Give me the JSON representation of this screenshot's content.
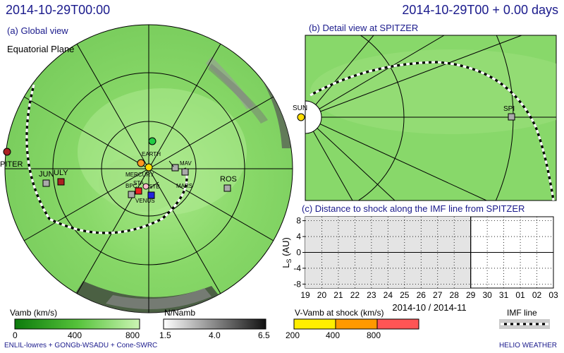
{
  "header": {
    "title": "2014-10-29T00:00",
    "right_title": "2014-10-29T00 + 0.00 days"
  },
  "global_view": {
    "label": "(a) Global view",
    "plane": "Equatorial Plane",
    "bodies": [
      {
        "name": "EARTH",
        "color": "#22cc44"
      },
      {
        "name": "MERCURY",
        "color": "#ff9922"
      },
      {
        "name": "SUN",
        "color": "#ffdd00"
      },
      {
        "name": "STA",
        "color": "#ee2222"
      },
      {
        "name": "STB",
        "color": "#2222dd"
      },
      {
        "name": "VENUS",
        "color": "#ffbbcc"
      },
      {
        "name": "MAV",
        "color": "#aaaaaa"
      },
      {
        "name": "MARS",
        "color": "#ffffff"
      },
      {
        "name": "ROS",
        "color": "#aaaaaa"
      },
      {
        "name": "JUN",
        "color": "#aaaaaa"
      },
      {
        "name": "ULY",
        "color": "#aa2222"
      },
      {
        "name": "PITER",
        "color": "#aa2222"
      },
      {
        "name": "SPI",
        "color": "#aaaaaa"
      },
      {
        "name": "BPC",
        "color": "#aaaaaa"
      }
    ]
  },
  "detail_view": {
    "label": "(b) Detail view at SPITZER",
    "sun_label": "SUN",
    "spi_label": "SPI"
  },
  "chart_data": {
    "type": "line",
    "title": "(c) Distance to shock along the IMF line from SPITZER",
    "ylabel_main": "L",
    "ylabel_sub": "S",
    "ylabel_unit": " (AU)",
    "xlabel": "2014-10 / 2014-11",
    "yticks": [
      "8",
      "4",
      "0",
      "-4",
      "-8"
    ],
    "ylim": [
      -9,
      9
    ],
    "xticks": [
      "19",
      "20",
      "21",
      "22",
      "23",
      "24",
      "25",
      "26",
      "27",
      "28",
      "29",
      "30",
      "31",
      "01",
      "02",
      "03"
    ],
    "shaded_until_index": 10,
    "series": []
  },
  "legends": {
    "vamb": {
      "title": "Vamb (km/s)",
      "ticks": [
        "0",
        "400",
        "800"
      ]
    },
    "namb": {
      "title": "N/Namb",
      "ticks": [
        "1.5",
        "4.0",
        "6.5"
      ]
    },
    "shock": {
      "title": "V-Vamb at shock (km/s)",
      "ticks": [
        "200",
        "400",
        "800"
      ],
      "colors": [
        "#ffee00",
        "#ff9900",
        "#ff5555"
      ]
    },
    "imf": {
      "title": "IMF line"
    }
  },
  "footer": {
    "credit_left": "ENLIL-lowres + GONGb-WSADU + Cone-SWRC",
    "credit_right": "HELIO WEATHER"
  }
}
